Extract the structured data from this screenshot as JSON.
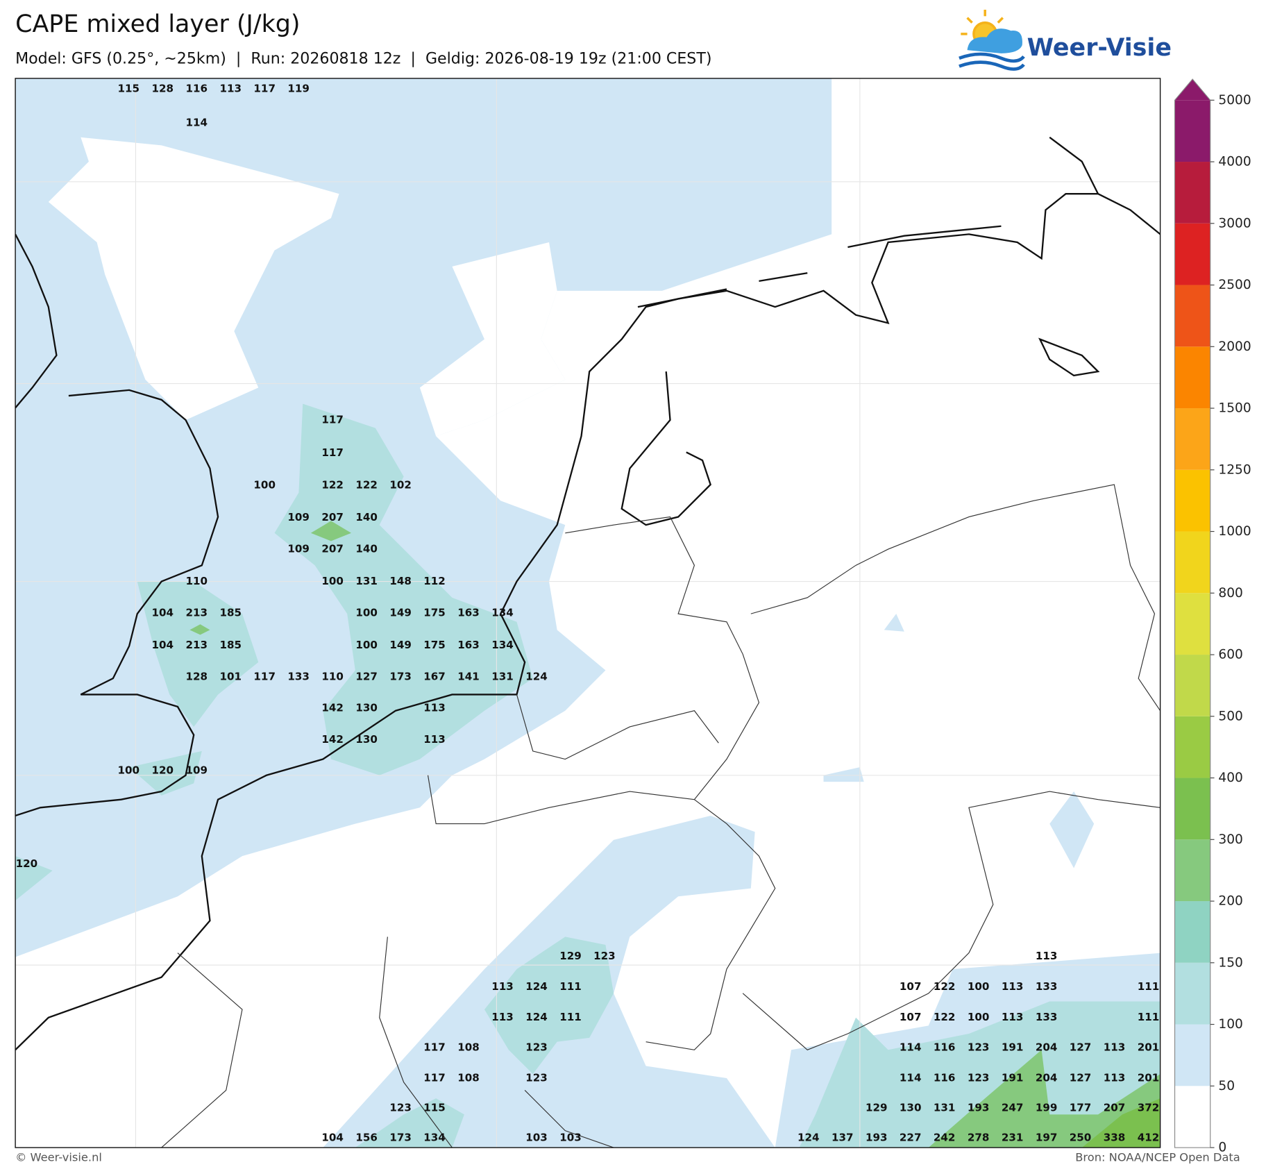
{
  "header": {
    "title": "CAPE mixed layer (J/kg)",
    "subtitle": "Model: GFS (0.25°, ~25km)  |  Run: 20260818 12z  |  Geldig: 2026-08-19 19z (21:00 CEST)",
    "logo": "Weer-Visie"
  },
  "footer": {
    "left": "© Weer-visie.nl",
    "right": "Bron: NOAA/NCEP Open Data"
  },
  "colorbar": {
    "levels": [
      0,
      50,
      100,
      150,
      200,
      300,
      400,
      500,
      600,
      800,
      1000,
      1250,
      1500,
      2000,
      2500,
      3000,
      4000,
      5000
    ],
    "colors": [
      "#ffffff",
      "#d0e6f5",
      "#b2dfe0",
      "#8fd3c2",
      "#86c97e",
      "#7bc04f",
      "#9acb44",
      "#c1d94a",
      "#dfe03f",
      "#f1d51c",
      "#fbc200",
      "#fca518",
      "#fb8500",
      "#ee5418",
      "#dd2222",
      "#b71c3c",
      "#8b1a6a"
    ],
    "extend_color": "#8b1a6a"
  },
  "labels": {
    "rows": [
      [
        null,
        null,
        null,
        115,
        128,
        116,
        113,
        117,
        119
      ],
      [
        null,
        null,
        null,
        null,
        null,
        114
      ],
      [
        null,
        null,
        null,
        null,
        null,
        null,
        null,
        null,
        null,
        117
      ],
      [
        null,
        null,
        null,
        null,
        null,
        null,
        null,
        null,
        null,
        117
      ],
      [
        null,
        null,
        null,
        null,
        null,
        null,
        null,
        100,
        null,
        122,
        122,
        102
      ],
      [
        null,
        null,
        null,
        null,
        null,
        null,
        null,
        null,
        109,
        207,
        140
      ],
      [
        null,
        null,
        null,
        null,
        null,
        null,
        null,
        null,
        109,
        207,
        140
      ],
      [
        null,
        null,
        null,
        null,
        null,
        110,
        null,
        null,
        null,
        100,
        131,
        148,
        112
      ],
      [
        null,
        null,
        null,
        null,
        104,
        213,
        185,
        null,
        null,
        null,
        100,
        149,
        175,
        163,
        134
      ],
      [
        null,
        null,
        null,
        null,
        104,
        213,
        185,
        null,
        null,
        null,
        100,
        149,
        175,
        163,
        134
      ],
      [
        null,
        null,
        null,
        null,
        null,
        128,
        101,
        117,
        133,
        110,
        127,
        173,
        167,
        141,
        131,
        124
      ],
      [
        null,
        null,
        null,
        null,
        null,
        null,
        null,
        null,
        null,
        142,
        130,
        null,
        113
      ],
      [
        null,
        null,
        null,
        null,
        null,
        null,
        null,
        null,
        null,
        142,
        130,
        null,
        113
      ],
      [
        null,
        null,
        null,
        100,
        120,
        109
      ],
      [
        120
      ],
      [
        null,
        null,
        null,
        null,
        null,
        null,
        null,
        null,
        null,
        null,
        null,
        null,
        null,
        null,
        null,
        null,
        129,
        123,
        null,
        null,
        null,
        null,
        null,
        null,
        null,
        null,
        null,
        null,
        null,
        null,
        113
      ],
      [
        null,
        null,
        null,
        null,
        null,
        null,
        null,
        null,
        null,
        null,
        null,
        null,
        null,
        null,
        113,
        124,
        111,
        null,
        null,
        null,
        null,
        null,
        null,
        null,
        null,
        null,
        107,
        122,
        100,
        113,
        133,
        null,
        null,
        111
      ],
      [
        null,
        null,
        null,
        null,
        null,
        null,
        null,
        null,
        null,
        null,
        null,
        null,
        null,
        null,
        113,
        124,
        111,
        null,
        null,
        null,
        null,
        null,
        null,
        null,
        null,
        null,
        107,
        122,
        100,
        113,
        133,
        null,
        null,
        111
      ],
      [
        null,
        null,
        null,
        null,
        null,
        null,
        null,
        null,
        null,
        null,
        null,
        null,
        117,
        108,
        null,
        123,
        null,
        null,
        null,
        null,
        null,
        null,
        null,
        null,
        null,
        null,
        114,
        116,
        123,
        191,
        204,
        127,
        113,
        201
      ],
      [
        null,
        null,
        null,
        null,
        null,
        null,
        null,
        null,
        null,
        null,
        null,
        null,
        117,
        108,
        null,
        123,
        null,
        null,
        null,
        null,
        null,
        null,
        null,
        null,
        null,
        null,
        114,
        116,
        123,
        191,
        204,
        127,
        113,
        201
      ],
      [
        null,
        null,
        null,
        null,
        null,
        null,
        null,
        null,
        null,
        null,
        null,
        123,
        115,
        null,
        null,
        null,
        null,
        null,
        null,
        null,
        null,
        null,
        null,
        null,
        null,
        129,
        130,
        131,
        193,
        247,
        199,
        177,
        207,
        372
      ],
      [
        null,
        null,
        null,
        null,
        null,
        null,
        null,
        null,
        null,
        104,
        156,
        173,
        134,
        null,
        null,
        103,
        103,
        null,
        null,
        null,
        null,
        null,
        null,
        124,
        137,
        193,
        227,
        242,
        278,
        231,
        197,
        250,
        338,
        412
      ]
    ]
  }
}
